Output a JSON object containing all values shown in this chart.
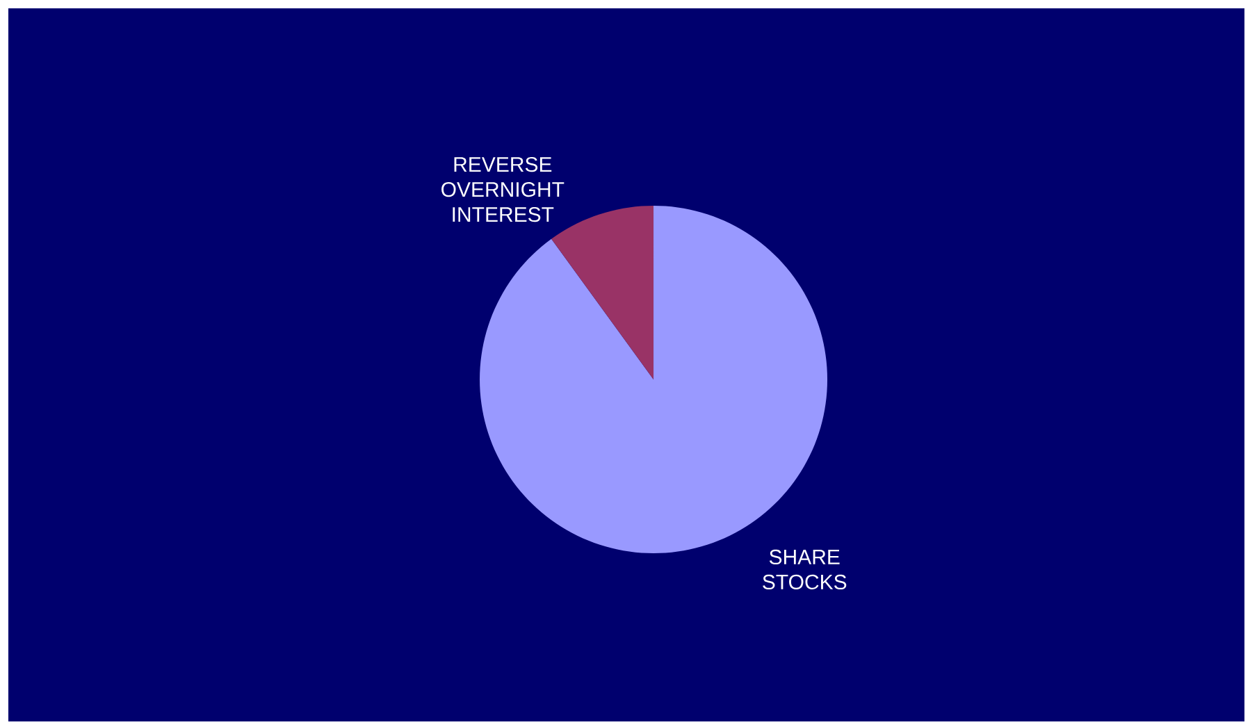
{
  "chart_data": {
    "type": "pie",
    "categories": [
      "SHARE STOCKS",
      "REVERSE OVERNIGHT INTEREST"
    ],
    "values": [
      90,
      10
    ],
    "colors": [
      "#9999ff",
      "#993366"
    ]
  }
}
